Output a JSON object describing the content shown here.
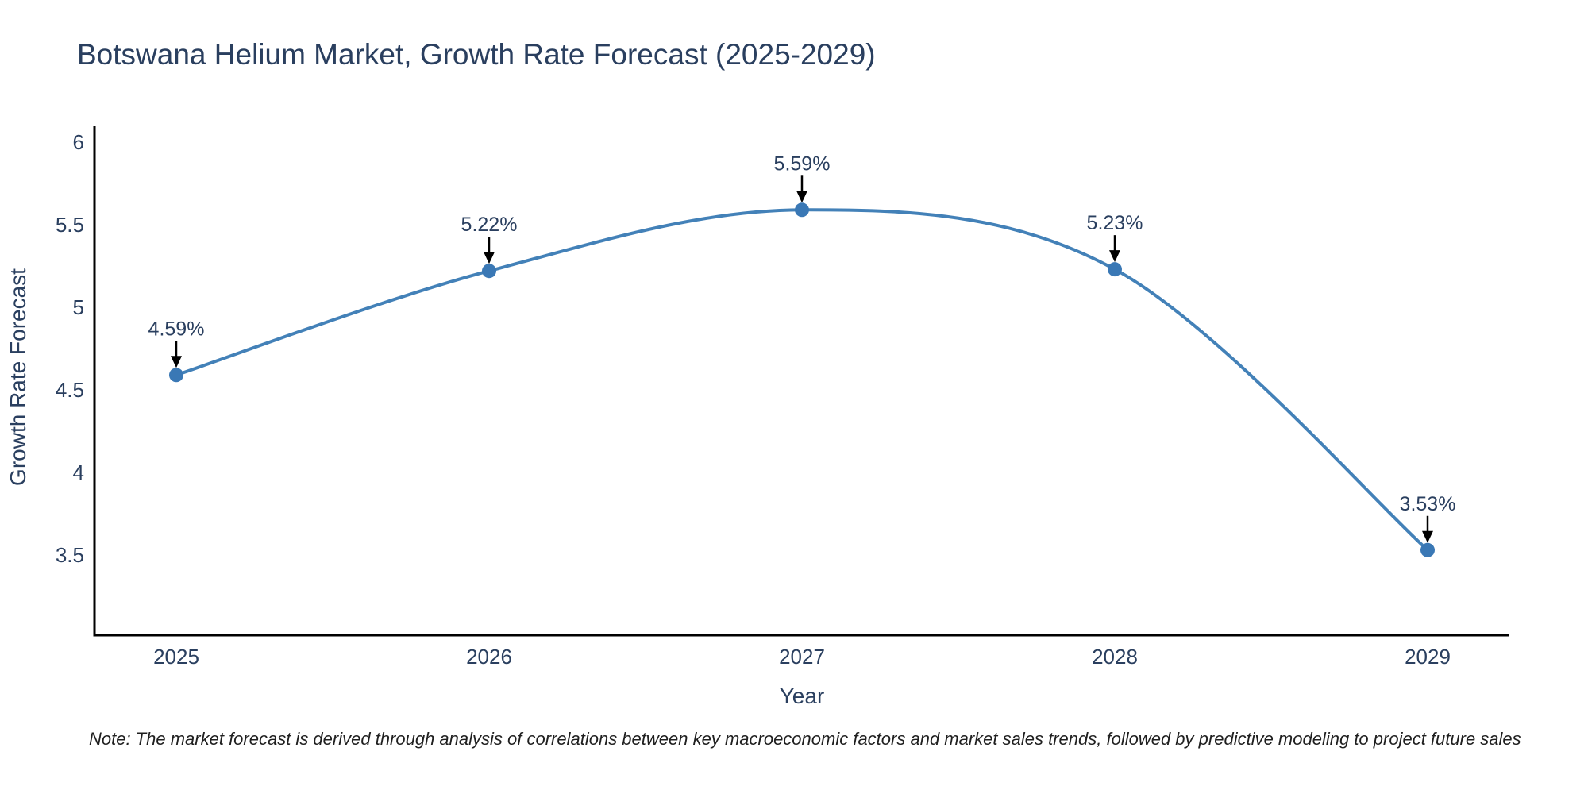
{
  "title": "Botswana Helium Market, Growth Rate Forecast (2025-2029)",
  "footnote": "Note: The market forecast is derived through analysis of correlations between key macroeconomic factors and market sales trends, followed by predictive modeling to project future sales",
  "chart_data": {
    "type": "line",
    "title": "Botswana Helium Market, Growth Rate Forecast (2025-2029)",
    "xlabel": "Year",
    "ylabel": "Growth Rate Forecast",
    "categories": [
      "2025",
      "2026",
      "2027",
      "2028",
      "2029"
    ],
    "series": [
      {
        "name": "Growth Rate Forecast",
        "values": [
          4.59,
          5.22,
          5.59,
          5.23,
          3.53
        ],
        "point_labels": [
          "4.59%",
          "5.22%",
          "5.59%",
          "5.23%",
          "3.53%"
        ]
      }
    ],
    "yticks": [
      3.5,
      4,
      4.5,
      5,
      5.5,
      6
    ],
    "ylim": [
      3.0,
      6.1
    ],
    "line_shape": "spline",
    "grid": false,
    "legend": "none",
    "annotations_have_arrows": true,
    "colors": {
      "line": "#4381b8",
      "marker": "#3a78b5",
      "axis": "#000000",
      "text": "#2a3f5f",
      "arrow": "#000000",
      "background": "#ffffff"
    }
  }
}
